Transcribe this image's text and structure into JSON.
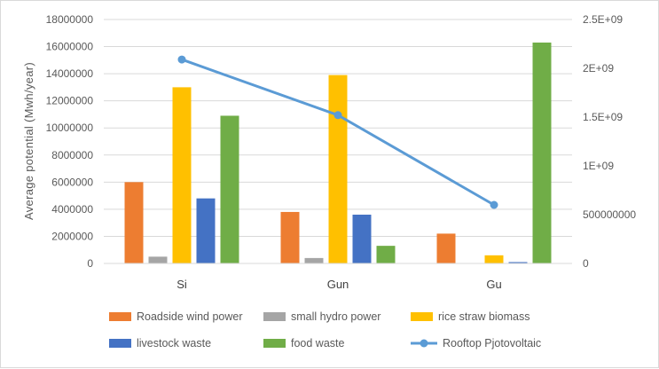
{
  "chart_data": {
    "type": "bar",
    "title": "",
    "xlabel": "",
    "ylabel": "Average potential (Mwh/year)",
    "categories": [
      "Si",
      "Gun",
      "Gu"
    ],
    "ylim": [
      0,
      18000000
    ],
    "y_ticks": [
      "0",
      "2000000",
      "4000000",
      "6000000",
      "8000000",
      "10000000",
      "12000000",
      "14000000",
      "16000000",
      "18000000"
    ],
    "y2lim": [
      0,
      2500000000
    ],
    "y2_ticks": [
      "0",
      "500000000",
      "1E+09",
      "1.5E+09",
      "2E+09",
      "2.5E+09"
    ],
    "grid": true,
    "legend_position": "bottom",
    "series": [
      {
        "name": "Roadside wind power",
        "color": "#ED7D31",
        "axis": "left",
        "kind": "bar",
        "values": [
          6000000,
          3800000,
          2200000
        ]
      },
      {
        "name": "small hydro power",
        "color": "#A5A5A5",
        "axis": "left",
        "kind": "bar",
        "values": [
          500000,
          400000,
          0
        ]
      },
      {
        "name": "rice straw biomass",
        "color": "#FFC000",
        "axis": "left",
        "kind": "bar",
        "values": [
          13000000,
          13900000,
          600000
        ]
      },
      {
        "name": "livestock waste",
        "color": "#4472C4",
        "axis": "left",
        "kind": "bar",
        "values": [
          4800000,
          3600000,
          100000
        ]
      },
      {
        "name": "food waste",
        "color": "#70AD47",
        "axis": "left",
        "kind": "bar",
        "values": [
          10900000,
          1300000,
          16300000
        ]
      },
      {
        "name": "Rooftop Pjotovoltaic",
        "color": "#5B9BD5",
        "axis": "right",
        "kind": "line",
        "values": [
          2090000000,
          1520000000,
          600000000
        ]
      }
    ]
  }
}
